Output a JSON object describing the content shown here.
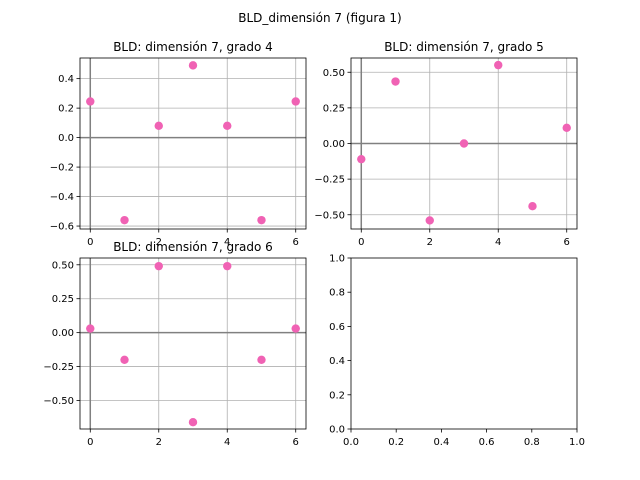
{
  "figure": {
    "suptitle": "BLD_dimensión 7 (figura 1)"
  },
  "chart_data": [
    {
      "type": "scatter",
      "title": "BLD: dimensión 7, grado 4",
      "x": [
        0,
        1,
        2,
        3,
        4,
        5,
        6
      ],
      "y": [
        0.245,
        -0.56,
        0.08,
        0.49,
        0.08,
        -0.56,
        0.245
      ],
      "xlim": [
        -0.3,
        6.3
      ],
      "ylim": [
        -0.62,
        0.54
      ],
      "xticks": [
        0,
        2,
        4,
        6
      ],
      "yticks": [
        0.4,
        0.2,
        0.0,
        -0.2,
        -0.4,
        -0.6
      ],
      "ytick_labels": [
        "0.4",
        "0.2",
        "0.0",
        "−0.2",
        "−0.4",
        "−0.6"
      ],
      "grid": true,
      "color": "#f062b4"
    },
    {
      "type": "scatter",
      "title": "BLD: dimensión 7, grado 5",
      "x": [
        0,
        1,
        2,
        3,
        4,
        5,
        6
      ],
      "y": [
        -0.11,
        0.435,
        -0.54,
        0.0,
        0.55,
        -0.44,
        0.11
      ],
      "xlim": [
        -0.3,
        6.3
      ],
      "ylim": [
        -0.6,
        0.6
      ],
      "xticks": [
        0,
        2,
        4,
        6
      ],
      "yticks": [
        0.5,
        0.25,
        0.0,
        -0.25,
        -0.5
      ],
      "ytick_labels": [
        "0.50",
        "0.25",
        "0.00",
        "−0.25",
        "−0.50"
      ],
      "grid": true,
      "color": "#f062b4"
    },
    {
      "type": "scatter",
      "title": "BLD: dimensión 7, grado 6",
      "x": [
        0,
        1,
        2,
        3,
        4,
        5,
        6
      ],
      "y": [
        0.03,
        -0.2,
        0.49,
        -0.66,
        0.49,
        -0.2,
        0.03
      ],
      "xlim": [
        -0.3,
        6.3
      ],
      "ylim": [
        -0.71,
        0.55
      ],
      "xticks": [
        0,
        2,
        4,
        6
      ],
      "yticks": [
        0.5,
        0.25,
        0.0,
        -0.25,
        -0.5
      ],
      "ytick_labels": [
        "0.50",
        "0.25",
        "0.00",
        "−0.25",
        "−0.50"
      ],
      "grid": true,
      "color": "#f062b4"
    },
    {
      "type": "scatter",
      "title": "",
      "x": [],
      "y": [],
      "xlim": [
        0,
        1
      ],
      "ylim": [
        0,
        1
      ],
      "xticks": [
        0,
        0.2,
        0.4,
        0.6,
        0.8,
        1.0
      ],
      "yticks": [
        0,
        0.2,
        0.4,
        0.6,
        0.8,
        1.0
      ],
      "xtick_labels": [
        "0.0",
        "0.2",
        "0.4",
        "0.6",
        "0.8",
        "1.0"
      ],
      "ytick_labels": [
        "0.0",
        "0.2",
        "0.4",
        "0.6",
        "0.8",
        "1.0"
      ],
      "grid": false,
      "color": "#f062b4"
    }
  ]
}
